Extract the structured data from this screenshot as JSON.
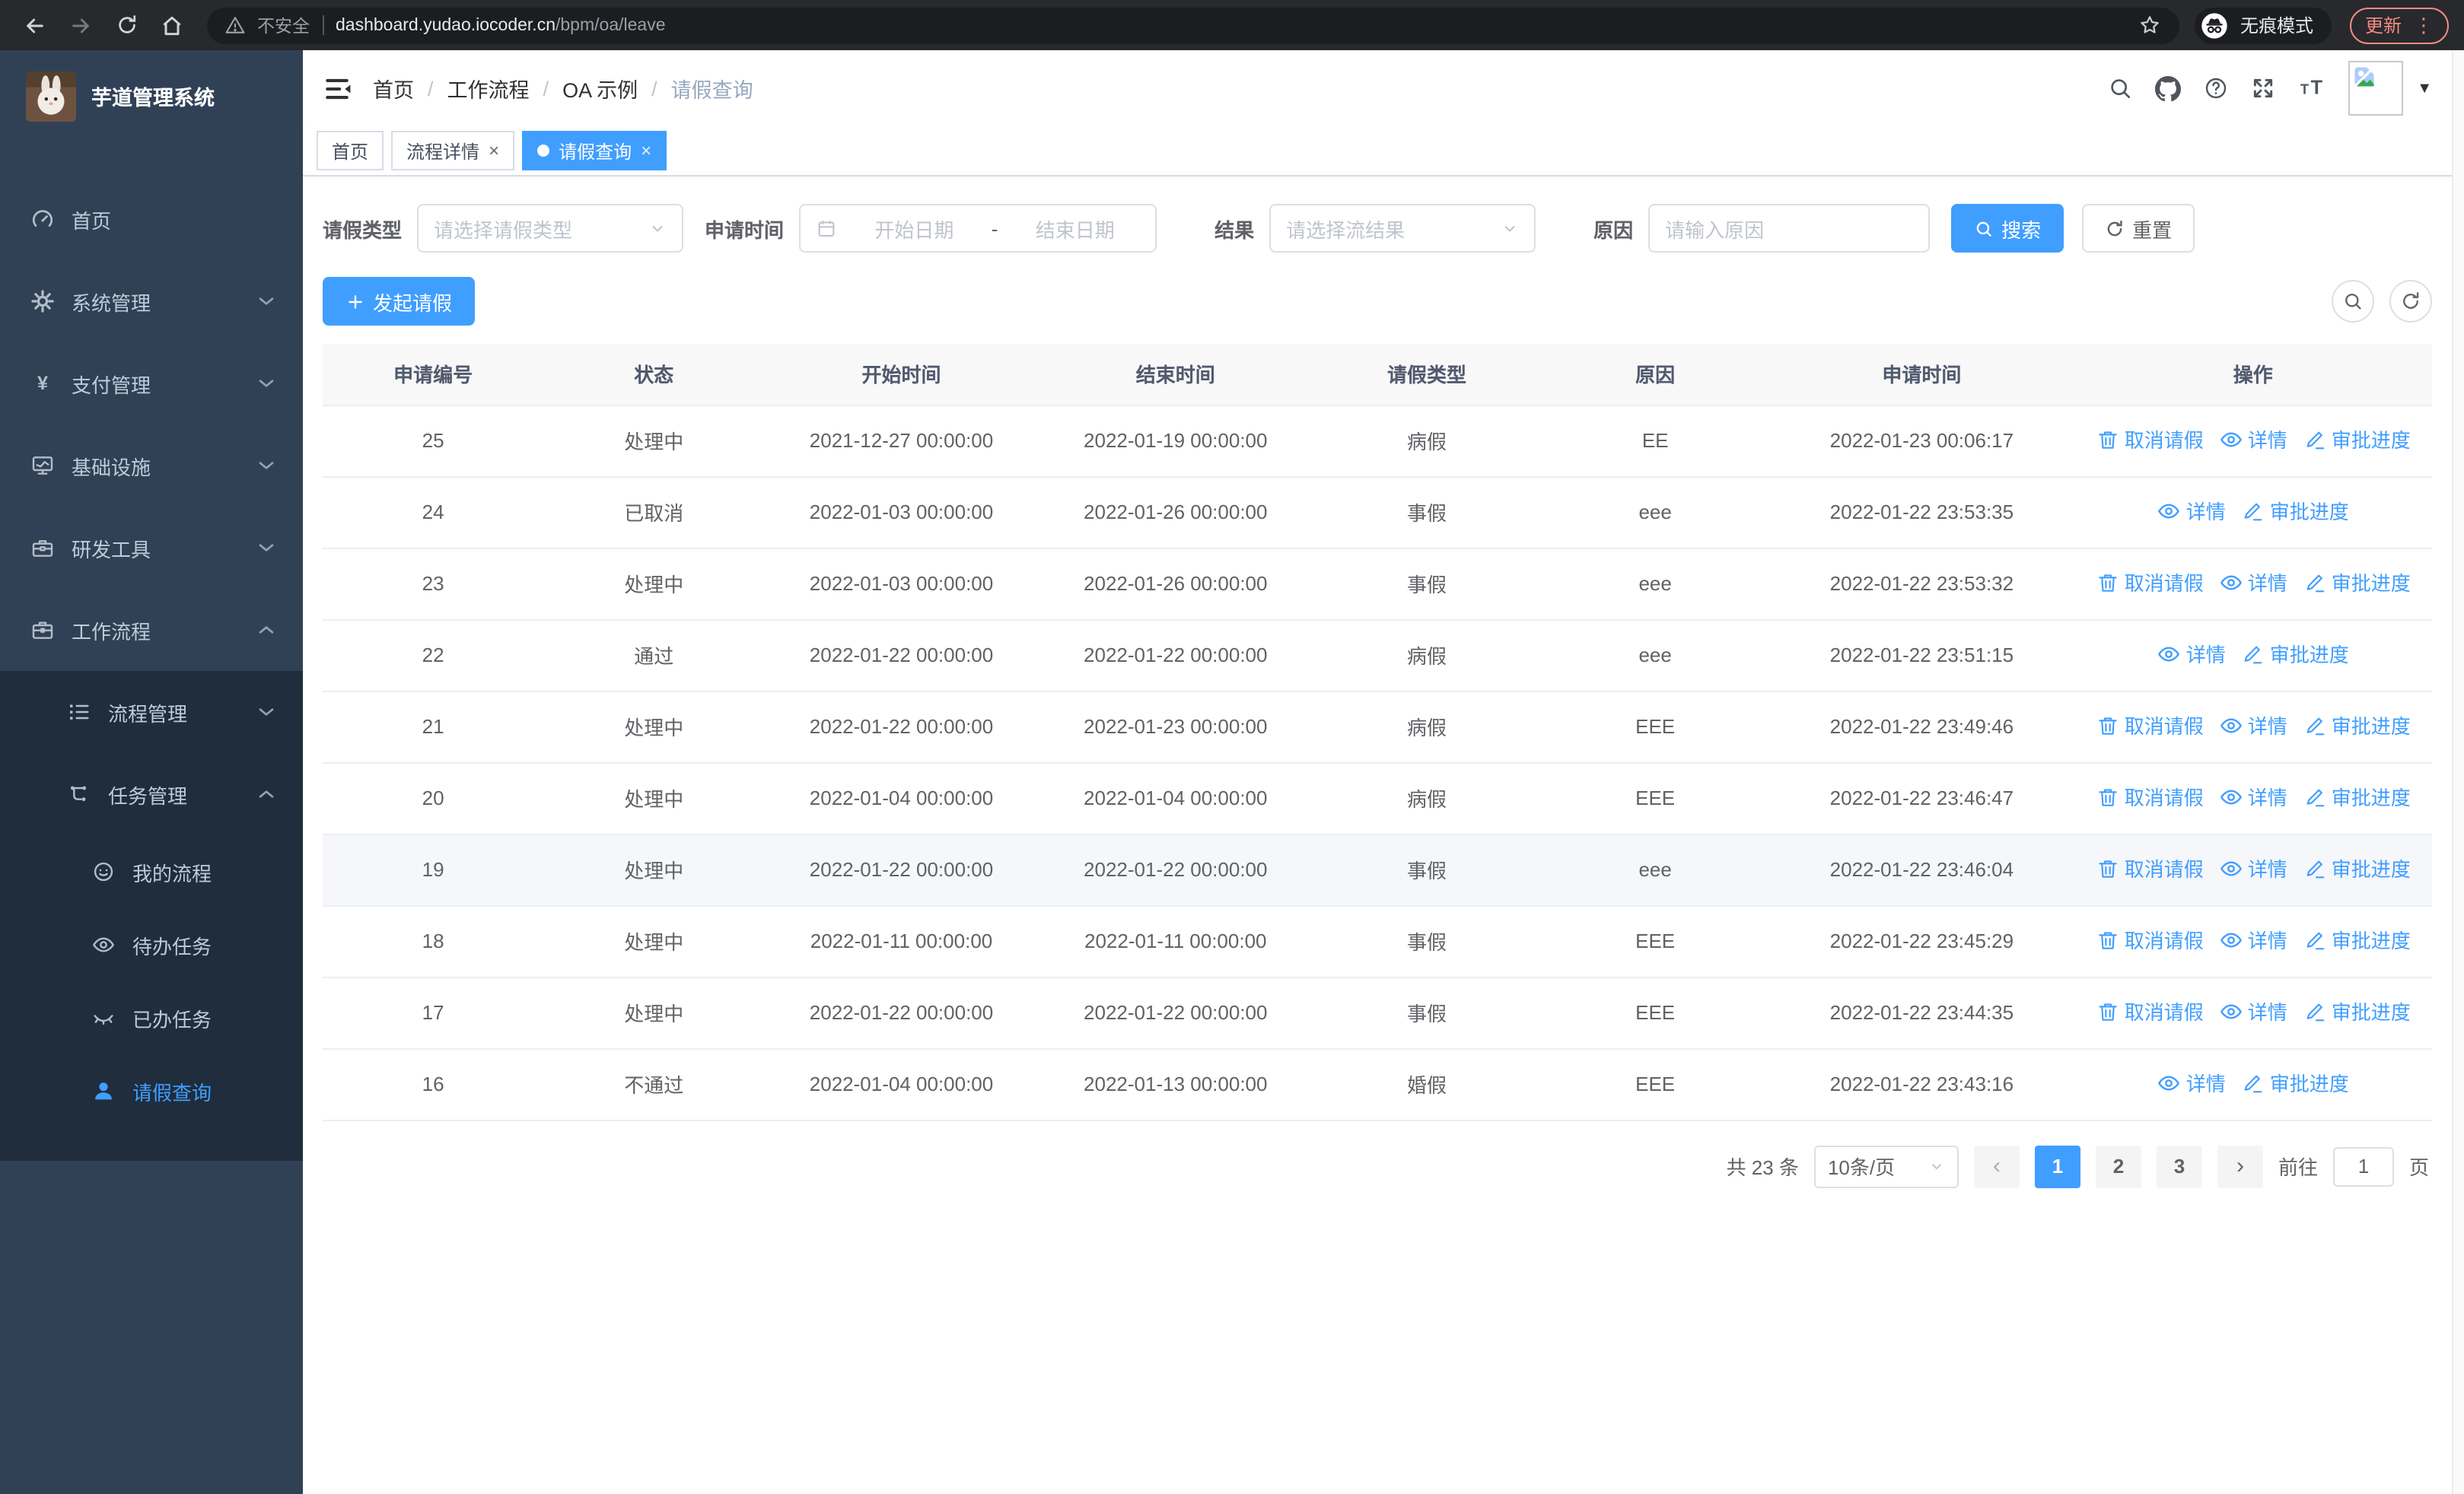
{
  "browser": {
    "nav_icons": [
      "back-icon",
      "forward-icon",
      "reload-icon",
      "home-icon"
    ],
    "security_warning": "不安全",
    "url_host": "dashboard.yudao.iocoder.cn",
    "url_path": "/bpm/oa/leave",
    "incognito_label": "无痕模式",
    "update_label": "更新",
    "accent_color": "#f28b82"
  },
  "sidebar": {
    "app_title": "芋道管理系统",
    "items": [
      {
        "label": "首页",
        "icon": "dashboard-icon"
      },
      {
        "label": "系统管理",
        "icon": "gear-icon",
        "chevron": "down"
      },
      {
        "label": "支付管理",
        "icon": "yen-icon",
        "chevron": "down"
      },
      {
        "label": "基础设施",
        "icon": "monitor-icon",
        "chevron": "down"
      },
      {
        "label": "研发工具",
        "icon": "toolbox-icon",
        "chevron": "down"
      },
      {
        "label": "工作流程",
        "icon": "briefcase-icon",
        "chevron": "up"
      }
    ],
    "submenu": [
      {
        "label": "流程管理",
        "icon": "list-icon",
        "chevron": "down",
        "level": 1
      },
      {
        "label": "任务管理",
        "icon": "flow-icon",
        "chevron": "up",
        "level": 1
      },
      {
        "label": "我的流程",
        "icon": "face-icon",
        "level": 2
      },
      {
        "label": "待办任务",
        "icon": "eye-icon",
        "level": 2
      },
      {
        "label": "已办任务",
        "icon": "eye-closed-icon",
        "level": 2
      },
      {
        "label": "请假查询",
        "icon": "user-icon",
        "level": 2,
        "active": true
      }
    ],
    "bg_color": "#304156",
    "submenu_bg_color": "#1f2d3d",
    "active_color": "#409eff"
  },
  "header": {
    "breadcrumb": [
      "首页",
      "工作流程",
      "OA 示例",
      "请假查询"
    ],
    "icons": [
      "search-icon",
      "github-icon",
      "help-icon",
      "fullscreen-icon",
      "font-size-icon"
    ]
  },
  "tabs": [
    {
      "label": "首页",
      "closable": false,
      "active": false
    },
    {
      "label": "流程详情",
      "closable": true,
      "active": false
    },
    {
      "label": "请假查询",
      "closable": true,
      "active": true
    }
  ],
  "filters": {
    "leave_type_label": "请假类型",
    "leave_type_placeholder": "请选择请假类型",
    "apply_time_label": "申请时间",
    "start_date_placeholder": "开始日期",
    "date_separator": "-",
    "end_date_placeholder": "结束日期",
    "result_label": "结果",
    "result_placeholder": "请选择流结果",
    "reason_label": "原因",
    "reason_placeholder": "请输入原因",
    "search_label": "搜索",
    "reset_label": "重置"
  },
  "toolbar": {
    "create_label": "发起请假"
  },
  "table": {
    "columns": [
      "申请编号",
      "状态",
      "开始时间",
      "结束时间",
      "请假类型",
      "原因",
      "申请时间",
      "操作"
    ],
    "action_labels": {
      "cancel": "取消请假",
      "detail": "详情",
      "progress": "审批进度"
    },
    "rows": [
      {
        "id": "25",
        "status": "处理中",
        "start": "2021-12-27 00:00:00",
        "end": "2022-01-19 00:00:00",
        "type": "病假",
        "reason": "EE",
        "applied": "2022-01-23 00:06:17",
        "actions": [
          "cancel",
          "detail",
          "progress"
        ],
        "highlighted": false
      },
      {
        "id": "24",
        "status": "已取消",
        "start": "2022-01-03 00:00:00",
        "end": "2022-01-26 00:00:00",
        "type": "事假",
        "reason": "eee",
        "applied": "2022-01-22 23:53:35",
        "actions": [
          "detail",
          "progress"
        ],
        "highlighted": false
      },
      {
        "id": "23",
        "status": "处理中",
        "start": "2022-01-03 00:00:00",
        "end": "2022-01-26 00:00:00",
        "type": "事假",
        "reason": "eee",
        "applied": "2022-01-22 23:53:32",
        "actions": [
          "cancel",
          "detail",
          "progress"
        ],
        "highlighted": false
      },
      {
        "id": "22",
        "status": "通过",
        "start": "2022-01-22 00:00:00",
        "end": "2022-01-22 00:00:00",
        "type": "病假",
        "reason": "eee",
        "applied": "2022-01-22 23:51:15",
        "actions": [
          "detail",
          "progress"
        ],
        "highlighted": false
      },
      {
        "id": "21",
        "status": "处理中",
        "start": "2022-01-22 00:00:00",
        "end": "2022-01-23 00:00:00",
        "type": "病假",
        "reason": "EEE",
        "applied": "2022-01-22 23:49:46",
        "actions": [
          "cancel",
          "detail",
          "progress"
        ],
        "highlighted": false
      },
      {
        "id": "20",
        "status": "处理中",
        "start": "2022-01-04 00:00:00",
        "end": "2022-01-04 00:00:00",
        "type": "病假",
        "reason": "EEE",
        "applied": "2022-01-22 23:46:47",
        "actions": [
          "cancel",
          "detail",
          "progress"
        ],
        "highlighted": false
      },
      {
        "id": "19",
        "status": "处理中",
        "start": "2022-01-22 00:00:00",
        "end": "2022-01-22 00:00:00",
        "type": "事假",
        "reason": "eee",
        "applied": "2022-01-22 23:46:04",
        "actions": [
          "cancel",
          "detail",
          "progress"
        ],
        "highlighted": true
      },
      {
        "id": "18",
        "status": "处理中",
        "start": "2022-01-11 00:00:00",
        "end": "2022-01-11 00:00:00",
        "type": "事假",
        "reason": "EEE",
        "applied": "2022-01-22 23:45:29",
        "actions": [
          "cancel",
          "detail",
          "progress"
        ],
        "highlighted": false
      },
      {
        "id": "17",
        "status": "处理中",
        "start": "2022-01-22 00:00:00",
        "end": "2022-01-22 00:00:00",
        "type": "事假",
        "reason": "EEE",
        "applied": "2022-01-22 23:44:35",
        "actions": [
          "cancel",
          "detail",
          "progress"
        ],
        "highlighted": false
      },
      {
        "id": "16",
        "status": "不通过",
        "start": "2022-01-04 00:00:00",
        "end": "2022-01-13 00:00:00",
        "type": "婚假",
        "reason": "EEE",
        "applied": "2022-01-22 23:43:16",
        "actions": [
          "detail",
          "progress"
        ],
        "highlighted": false
      }
    ]
  },
  "pagination": {
    "total_label": "共 23 条",
    "page_size": "10条/页",
    "pages": [
      "1",
      "2",
      "3"
    ],
    "active_page": "1",
    "goto_label": "前往",
    "goto_value": "1",
    "page_suffix": "页"
  },
  "colors": {
    "accent": "#409eff"
  }
}
